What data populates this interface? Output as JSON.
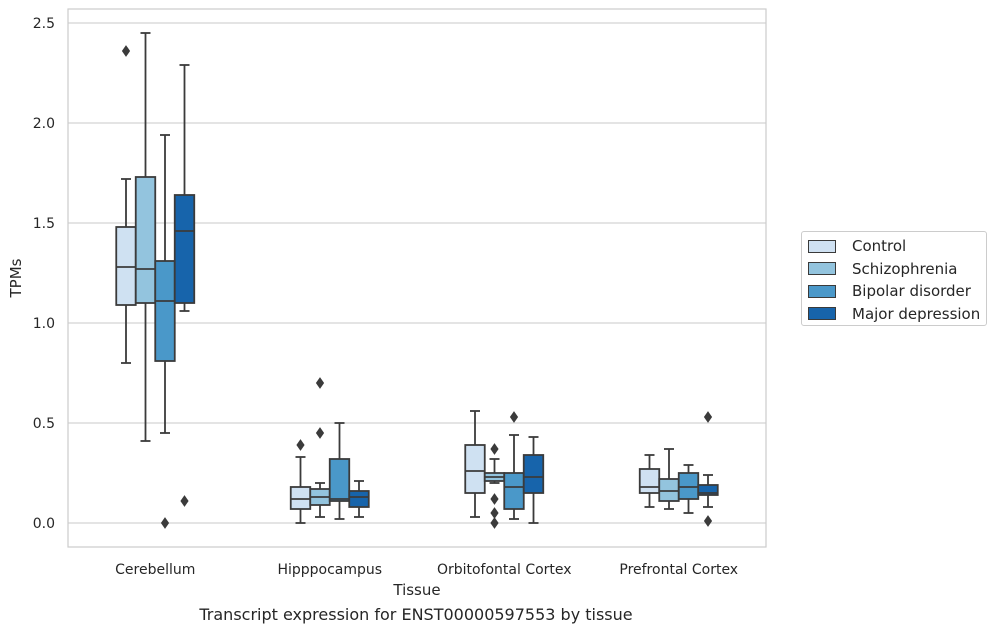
{
  "caption": "Transcript expression for ENST00000597553 by tissue",
  "colors": {
    "Control": "#cfe1f2",
    "Schizophrenia": "#93c4de",
    "Bipolar disorder": "#4a98c9",
    "Major depression": "#1764ab"
  },
  "chart_data": {
    "type": "box",
    "title": "",
    "xlabel": "Tissue",
    "ylabel": "TPMs",
    "ylim": [
      -0.12,
      2.57
    ],
    "yticks": [
      0.0,
      0.5,
      1.0,
      1.5,
      2.0,
      2.5
    ],
    "ytick_labels": [
      "0.0",
      "0.5",
      "1.0",
      "1.5",
      "2.0",
      "2.5"
    ],
    "grid": "horizontal",
    "legend_position": "right",
    "categories": [
      "Cerebellum",
      "Hipppocampus",
      "Orbitofontal Cortex",
      "Prefrontal Cortex"
    ],
    "series": [
      {
        "name": "Control",
        "boxes": [
          {
            "whisker_low": 0.8,
            "q1": 1.09,
            "median": 1.28,
            "q3": 1.48,
            "whisker_high": 1.72,
            "outliers": [
              2.36
            ]
          },
          {
            "whisker_low": 0.0,
            "q1": 0.07,
            "median": 0.12,
            "q3": 0.18,
            "whisker_high": 0.33,
            "outliers": [
              0.39
            ]
          },
          {
            "whisker_low": 0.03,
            "q1": 0.15,
            "median": 0.26,
            "q3": 0.39,
            "whisker_high": 0.56,
            "outliers": []
          },
          {
            "whisker_low": 0.08,
            "q1": 0.15,
            "median": 0.18,
            "q3": 0.27,
            "whisker_high": 0.34,
            "outliers": []
          }
        ]
      },
      {
        "name": "Schizophrenia",
        "boxes": [
          {
            "whisker_low": 0.41,
            "q1": 1.1,
            "median": 1.27,
            "q3": 1.73,
            "whisker_high": 2.45,
            "outliers": []
          },
          {
            "whisker_low": 0.03,
            "q1": 0.09,
            "median": 0.13,
            "q3": 0.17,
            "whisker_high": 0.2,
            "outliers": [
              0.45,
              0.7
            ]
          },
          {
            "whisker_low": 0.2,
            "q1": 0.21,
            "median": 0.23,
            "q3": 0.25,
            "whisker_high": 0.32,
            "outliers": [
              0.0,
              0.05,
              0.12,
              0.37
            ]
          },
          {
            "whisker_low": 0.07,
            "q1": 0.11,
            "median": 0.16,
            "q3": 0.22,
            "whisker_high": 0.37,
            "outliers": []
          }
        ]
      },
      {
        "name": "Bipolar disorder",
        "boxes": [
          {
            "whisker_low": 0.45,
            "q1": 0.81,
            "median": 1.11,
            "q3": 1.31,
            "whisker_high": 1.94,
            "outliers": [
              0.0
            ]
          },
          {
            "whisker_low": 0.02,
            "q1": 0.11,
            "median": 0.12,
            "q3": 0.32,
            "whisker_high": 0.5,
            "outliers": []
          },
          {
            "whisker_low": 0.02,
            "q1": 0.07,
            "median": 0.18,
            "q3": 0.25,
            "whisker_high": 0.44,
            "outliers": [
              0.53
            ]
          },
          {
            "whisker_low": 0.05,
            "q1": 0.12,
            "median": 0.18,
            "q3": 0.25,
            "whisker_high": 0.29,
            "outliers": []
          }
        ]
      },
      {
        "name": "Major depression",
        "boxes": [
          {
            "whisker_low": 1.06,
            "q1": 1.1,
            "median": 1.46,
            "q3": 1.64,
            "whisker_high": 2.29,
            "outliers": [
              0.11
            ]
          },
          {
            "whisker_low": 0.03,
            "q1": 0.08,
            "median": 0.13,
            "q3": 0.16,
            "whisker_high": 0.21,
            "outliers": []
          },
          {
            "whisker_low": 0.0,
            "q1": 0.15,
            "median": 0.23,
            "q3": 0.34,
            "whisker_high": 0.43,
            "outliers": []
          },
          {
            "whisker_low": 0.08,
            "q1": 0.14,
            "median": 0.15,
            "q3": 0.19,
            "whisker_high": 0.24,
            "outliers": [
              0.01,
              0.53
            ]
          }
        ]
      }
    ]
  }
}
